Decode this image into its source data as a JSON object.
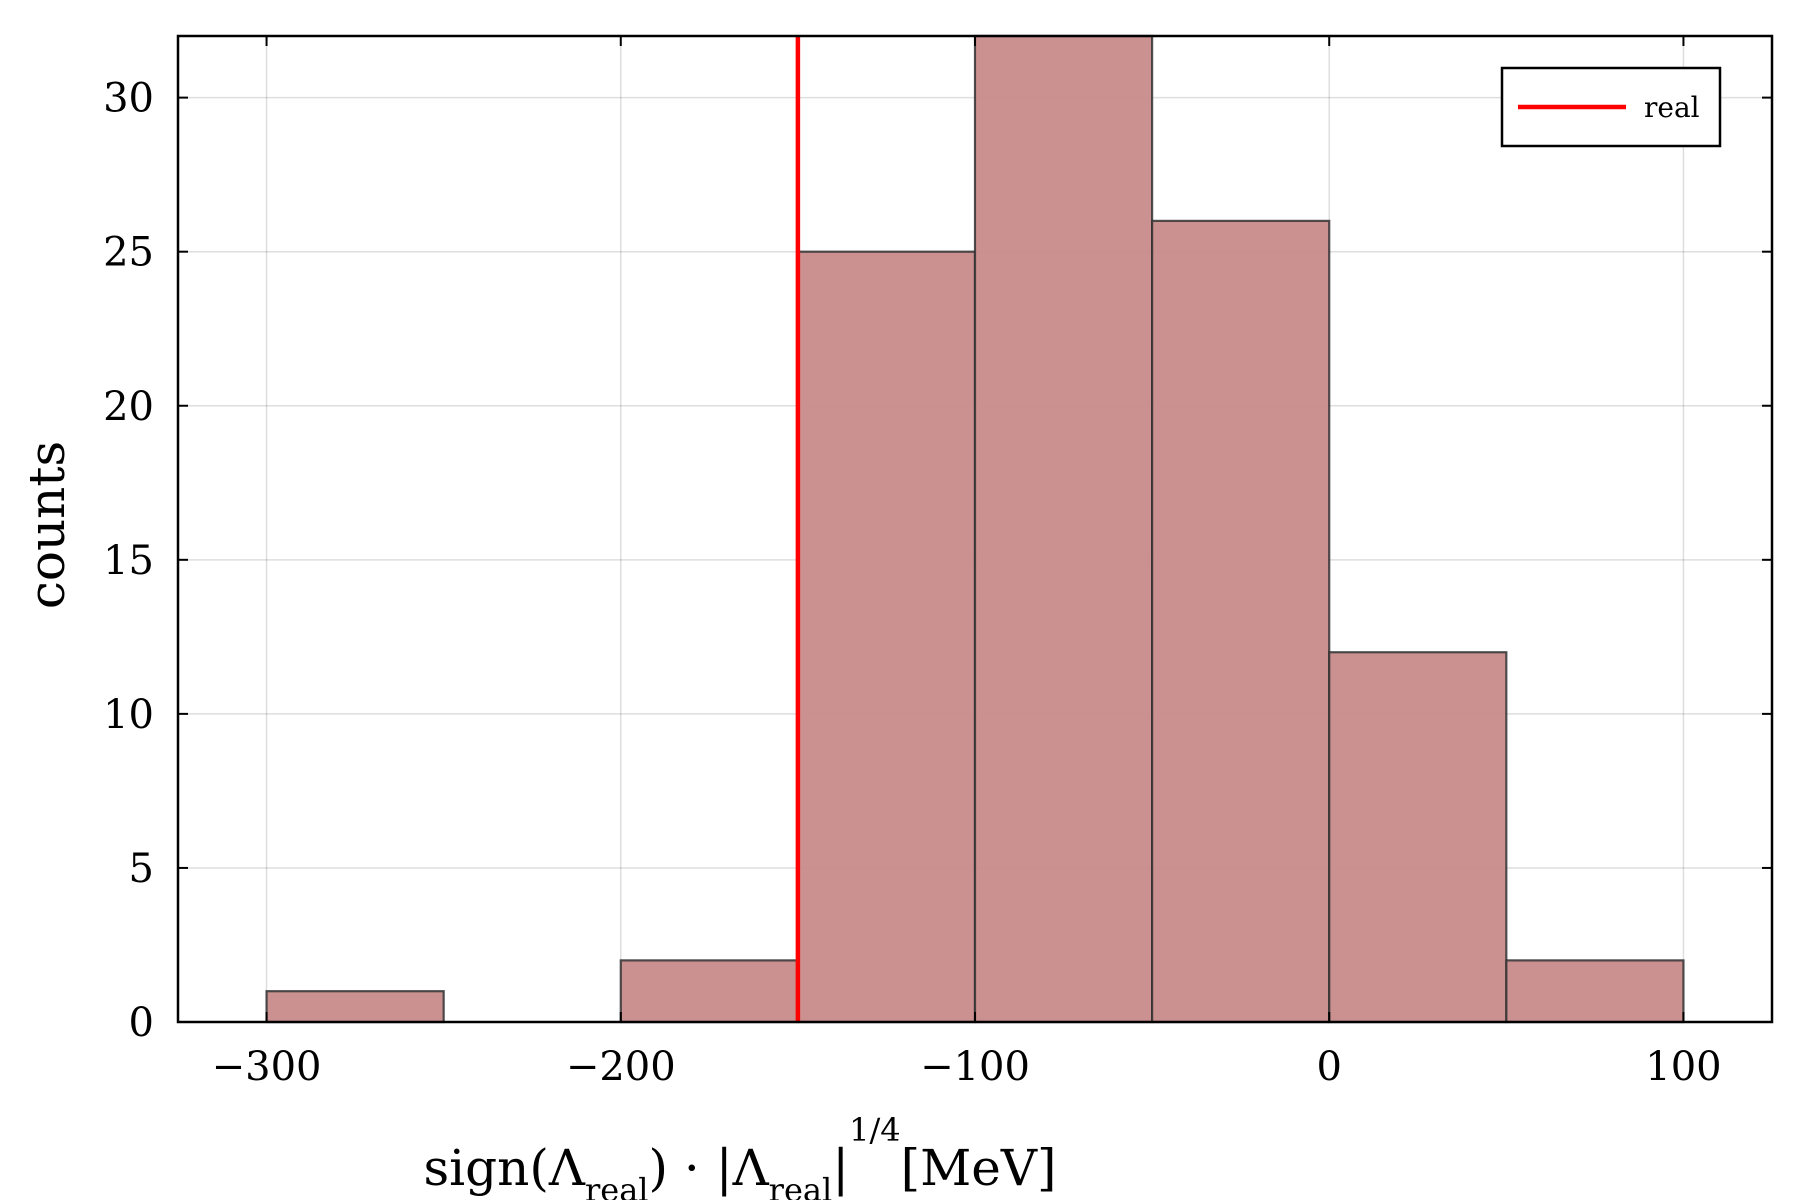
{
  "chart_data": {
    "type": "bar",
    "subtype": "histogram",
    "bin_edges": [
      -300,
      -250,
      -200,
      -150,
      -100,
      -50,
      0,
      50,
      100
    ],
    "values": [
      1,
      0,
      2,
      25,
      32,
      26,
      12,
      2
    ],
    "xlim": [
      -325,
      125
    ],
    "ylim": [
      0,
      32
    ],
    "xticks": [
      -300,
      -200,
      -100,
      0,
      100
    ],
    "xtick_labels": [
      "−300",
      "−200",
      "−100",
      "0",
      "100"
    ],
    "yticks": [
      0,
      5,
      10,
      15,
      20,
      25,
      30
    ],
    "ytick_labels": [
      "0",
      "5",
      "10",
      "15",
      "20",
      "25",
      "30"
    ],
    "grid": true,
    "ylabel": "counts",
    "xlabel": {
      "sign": "sign(",
      "lambda1": "Λ",
      "sub1": "real",
      "close_dot": ") · |",
      "lambda2": "Λ",
      "sub2": "real",
      "bar": "|",
      "power": "1/4",
      "unit": "[MeV]"
    },
    "reference_line": {
      "name": "real",
      "x": -150,
      "color": "#ff0000"
    },
    "legend": {
      "position": "top-right",
      "entries": [
        "real"
      ]
    },
    "bar_fill": "#c88a8a",
    "bar_edge": "#333333"
  }
}
